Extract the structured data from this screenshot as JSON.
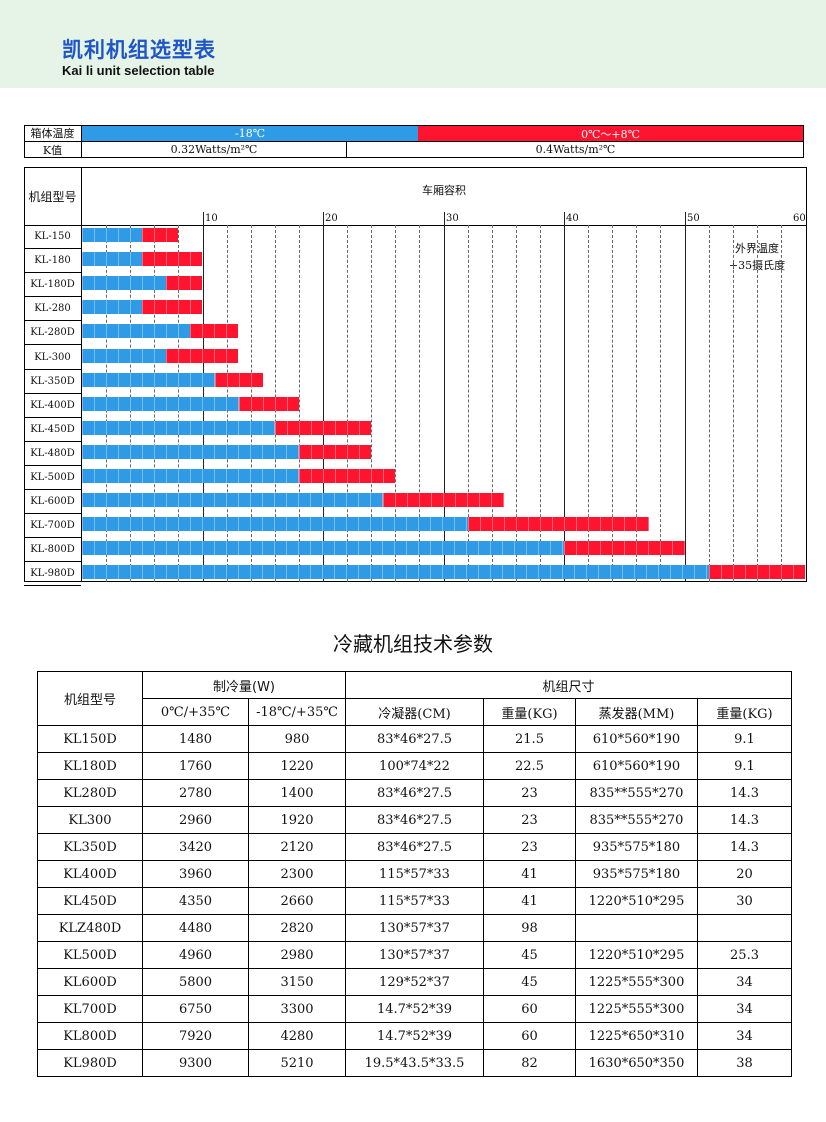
{
  "header": {
    "title_cn": "凯利机组选型表",
    "title_en": "Kai li unit selection table"
  },
  "selection": {
    "box_temp_label": "箱体温度",
    "temp_low": "-18℃",
    "temp_high": "0℃～+8℃",
    "k_label": "K值",
    "k_low": "0.32Watts/m²℃",
    "k_high": "0.4Watts/m²℃",
    "model_header": "机组型号",
    "volume_header": "车厢容积",
    "ambient_note": [
      "外界温度",
      "+35摄氏度"
    ],
    "ticks": [
      "10",
      "20",
      "30",
      "40",
      "50",
      "60"
    ],
    "colors": {
      "low": "#2f9be6",
      "high": "#ff1430"
    }
  },
  "chart_data": {
    "type": "bar",
    "xlabel": "车厢容积",
    "xlim": [
      0,
      60
    ],
    "categories": [
      "KL-150",
      "KL-180",
      "KL-180D",
      "KL-280",
      "KL-280D",
      "KL-300",
      "KL-350D",
      "KL-400D",
      "KL-450D",
      "KL-480D",
      "KL-500D",
      "KL-600D",
      "KL-700D",
      "KL-800D",
      "KL-980D"
    ],
    "series": [
      {
        "name": "-18℃",
        "values": [
          5,
          5,
          7,
          5,
          9,
          7,
          11,
          13,
          16,
          18,
          18,
          25,
          32,
          40,
          52
        ]
      },
      {
        "name": "0℃～+8℃",
        "values": [
          8,
          10,
          10,
          10,
          13,
          13,
          15,
          18,
          24,
          24,
          26,
          35,
          47,
          50,
          60
        ]
      }
    ]
  },
  "spec": {
    "title": "冷藏机组技术参数",
    "h_model": "机组型号",
    "h_cooling": "制冷量(W)",
    "h_size": "机组尺寸",
    "h_c1": "0℃/+35℃",
    "h_c2": "-18℃/+35℃",
    "h_cond": "冷凝器(CM)",
    "h_w1": "重量(KG)",
    "h_evap": "蒸发器(MM)",
    "h_w2": "重量(KG)",
    "rows": [
      [
        "KL150D",
        "1480",
        "980",
        "83*46*27.5",
        "21.5",
        "610*560*190",
        "9.1"
      ],
      [
        "KL180D",
        "1760",
        "1220",
        "100*74*22",
        "22.5",
        "610*560*190",
        "9.1"
      ],
      [
        "KL280D",
        "2780",
        "1400",
        "83*46*27.5",
        "23",
        "835**555*270",
        "14.3"
      ],
      [
        "KL300",
        "2960",
        "1920",
        "83*46*27.5",
        "23",
        "835**555*270",
        "14.3"
      ],
      [
        "KL350D",
        "3420",
        "2120",
        "83*46*27.5",
        "23",
        "935*575*180",
        "14.3"
      ],
      [
        "KL400D",
        "3960",
        "2300",
        "115*57*33",
        "41",
        "935*575*180",
        "20"
      ],
      [
        "KL450D",
        "4350",
        "2660",
        "115*57*33",
        "41",
        "1220*510*295",
        "30"
      ],
      [
        "KLZ480D",
        "4480",
        "2820",
        "130*57*37",
        "98",
        "",
        ""
      ],
      [
        "KL500D",
        "4960",
        "2980",
        "130*57*37",
        "45",
        "1220*510*295",
        "25.3"
      ],
      [
        "KL600D",
        "5800",
        "3150",
        "129*52*37",
        "45",
        "1225*555*300",
        "34"
      ],
      [
        "KL700D",
        "6750",
        "3300",
        "14.7*52*39",
        "60",
        "1225*555*300",
        "34"
      ],
      [
        "KL800D",
        "7920",
        "4280",
        "14.7*52*39",
        "60",
        "1225*650*310",
        "34"
      ],
      [
        "KL980D",
        "9300",
        "5210",
        "19.5*43.5*33.5",
        "82",
        "1630*650*350",
        "38"
      ]
    ]
  }
}
